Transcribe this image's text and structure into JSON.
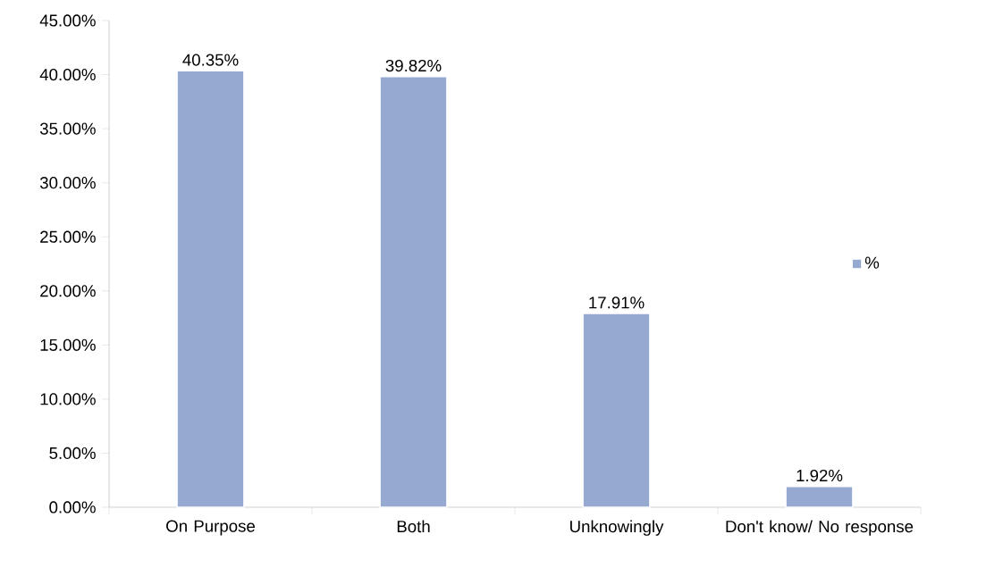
{
  "chart_data": {
    "type": "bar",
    "categories": [
      "On Purpose",
      "Both",
      "Unknowingly",
      "Don't know/ No response"
    ],
    "series": [
      {
        "name": "%",
        "color": "#95a9d1",
        "values": [
          40.35,
          39.82,
          17.91,
          1.92
        ],
        "value_labels": [
          "40.35%",
          "39.82%",
          "17.91%",
          "1.92%"
        ]
      }
    ],
    "ylim": [
      0,
      45
    ],
    "yticks": [
      {
        "value": 0,
        "label": "0.00%"
      },
      {
        "value": 5,
        "label": "5.00%"
      },
      {
        "value": 10,
        "label": "10.00%"
      },
      {
        "value": 15,
        "label": "15.00%"
      },
      {
        "value": 20,
        "label": "20.00%"
      },
      {
        "value": 25,
        "label": "25.00%"
      },
      {
        "value": 30,
        "label": "30.00%"
      },
      {
        "value": 35,
        "label": "35.00%"
      },
      {
        "value": 40,
        "label": "40.00%"
      },
      {
        "value": 45,
        "label": "45.00%"
      }
    ],
    "grid": false,
    "legend": "right"
  }
}
